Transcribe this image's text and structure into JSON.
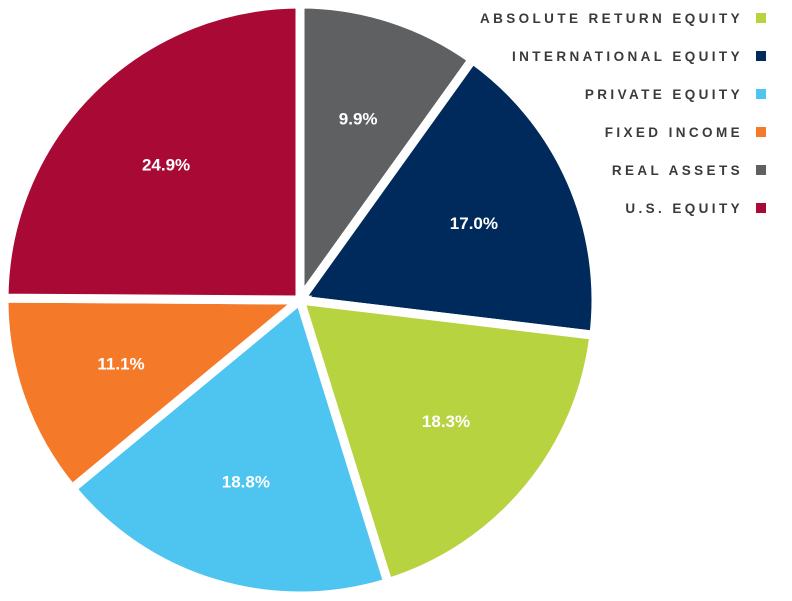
{
  "chart_data": {
    "type": "pie",
    "title": "",
    "legend_position": "top-right",
    "slices": [
      {
        "name": "REAL ASSETS",
        "value": 9.9,
        "label": "9.9%",
        "color": "#5f6062"
      },
      {
        "name": "INTERNATIONAL EQUITY",
        "value": 17.0,
        "label": "17.0%",
        "color": "#002a5c"
      },
      {
        "name": "ABSOLUTE RETURN EQUITY",
        "value": 18.3,
        "label": "18.3%",
        "color": "#b7d340"
      },
      {
        "name": "PRIVATE EQUITY",
        "value": 18.8,
        "label": "18.8%",
        "color": "#4ec4f0"
      },
      {
        "name": "FIXED INCOME",
        "value": 11.1,
        "label": "11.1%",
        "color": "#f47a2a"
      },
      {
        "name": "U.S. EQUITY",
        "value": 24.9,
        "label": "24.9%",
        "color": "#a80a35"
      }
    ],
    "legend": [
      {
        "name": "ABSOLUTE RETURN EQUITY",
        "color": "#b7d340"
      },
      {
        "name": "INTERNATIONAL EQUITY",
        "color": "#002a5c"
      },
      {
        "name": "PRIVATE EQUITY",
        "color": "#4ec4f0"
      },
      {
        "name": "FIXED INCOME",
        "color": "#f47a2a"
      },
      {
        "name": "REAL ASSETS",
        "color": "#5f6062"
      },
      {
        "name": "U.S. EQUITY",
        "color": "#a80a35"
      }
    ]
  }
}
